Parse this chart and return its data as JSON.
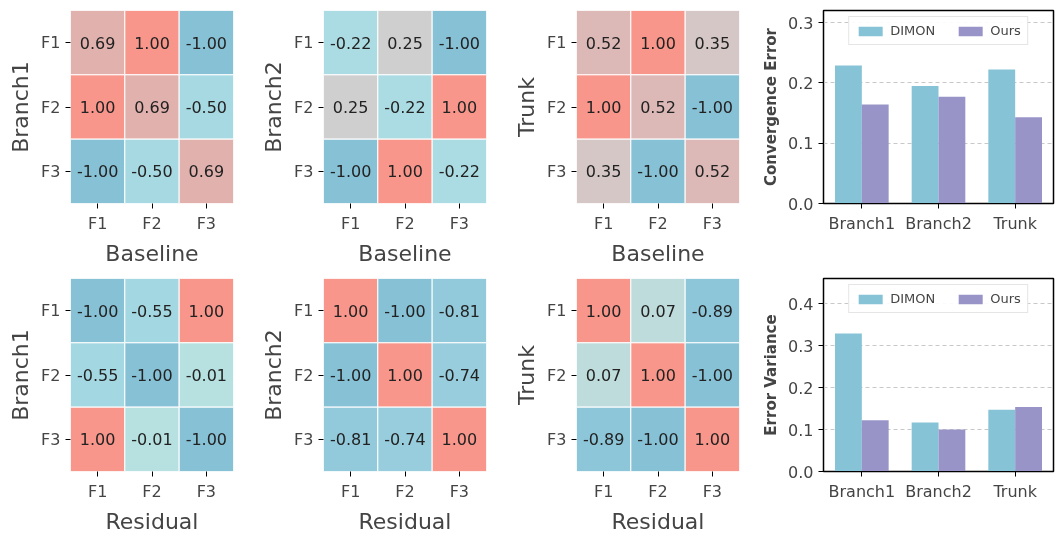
{
  "chart_data": [
    {
      "type": "heatmap",
      "xlabel": "Baseline",
      "ylabel": "Branch1",
      "categories": [
        "F1",
        "F2",
        "F3"
      ],
      "y_categories": [
        "F1",
        "F2",
        "F3"
      ],
      "cells": [
        [
          0.69,
          1.0,
          -1.0
        ],
        [
          1.0,
          0.69,
          -0.5
        ],
        [
          -1.0,
          -0.5,
          0.69
        ]
      ],
      "cell_labels": [
        [
          "0.69",
          "1.00",
          "-1.00"
        ],
        [
          "1.00",
          "0.69",
          "-0.50"
        ],
        [
          "-1.00",
          "-0.50",
          "0.69"
        ]
      ]
    },
    {
      "type": "heatmap",
      "xlabel": "Baseline",
      "ylabel": "Branch2",
      "categories": [
        "F1",
        "F2",
        "F3"
      ],
      "y_categories": [
        "F1",
        "F2",
        "F3"
      ],
      "cells": [
        [
          -0.22,
          0.25,
          -1.0
        ],
        [
          0.25,
          -0.22,
          1.0
        ],
        [
          -1.0,
          1.0,
          -0.22
        ]
      ],
      "cell_labels": [
        [
          "-0.22",
          "0.25",
          "-1.00"
        ],
        [
          "0.25",
          "-0.22",
          "1.00"
        ],
        [
          "-1.00",
          "1.00",
          "-0.22"
        ]
      ]
    },
    {
      "type": "heatmap",
      "xlabel": "Baseline",
      "ylabel": "Trunk",
      "categories": [
        "F1",
        "F2",
        "F3"
      ],
      "y_categories": [
        "F1",
        "F2",
        "F3"
      ],
      "cells": [
        [
          0.52,
          1.0,
          0.35
        ],
        [
          1.0,
          0.52,
          -1.0
        ],
        [
          0.35,
          -1.0,
          0.52
        ]
      ],
      "cell_labels": [
        [
          "0.52",
          "1.00",
          "0.35"
        ],
        [
          "1.00",
          "0.52",
          "-1.00"
        ],
        [
          "0.35",
          "-1.00",
          "0.52"
        ]
      ]
    },
    {
      "type": "bar",
      "ylabel": "Convergence Error",
      "categories": [
        "Branch1",
        "Branch2",
        "Trunk"
      ],
      "series": [
        {
          "name": "DIMON",
          "color": "#86c3d7",
          "values": [
            0.229,
            0.195,
            0.222
          ]
        },
        {
          "name": "Ours",
          "color": "#9994c8",
          "values": [
            0.164,
            0.177,
            0.143
          ]
        }
      ],
      "ylim": [
        0,
        0.32
      ],
      "yticks": [
        {
          "value": 0,
          "label": "0.0"
        },
        0.1,
        0.2,
        0.3
      ],
      "grid": "y",
      "legend": "top"
    },
    {
      "type": "heatmap",
      "xlabel": "Residual",
      "ylabel": "Branch1",
      "categories": [
        "F1",
        "F2",
        "F3"
      ],
      "y_categories": [
        "F1",
        "F2",
        "F3"
      ],
      "cells": [
        [
          -1.0,
          -0.55,
          1.0
        ],
        [
          -0.55,
          -1.0,
          -0.01
        ],
        [
          1.0,
          -0.01,
          -1.0
        ]
      ],
      "cell_labels": [
        [
          "-1.00",
          "-0.55",
          "1.00"
        ],
        [
          "-0.55",
          "-1.00",
          "-0.01"
        ],
        [
          "1.00",
          "-0.01",
          "-1.00"
        ]
      ]
    },
    {
      "type": "heatmap",
      "xlabel": "Residual",
      "ylabel": "Branch2",
      "categories": [
        "F1",
        "F2",
        "F3"
      ],
      "y_categories": [
        "F1",
        "F2",
        "F3"
      ],
      "cells": [
        [
          1.0,
          -1.0,
          -0.81
        ],
        [
          -1.0,
          1.0,
          -0.74
        ],
        [
          -0.81,
          -0.74,
          1.0
        ]
      ],
      "cell_labels": [
        [
          "1.00",
          "-1.00",
          "-0.81"
        ],
        [
          "-1.00",
          "1.00",
          "-0.74"
        ],
        [
          "-0.81",
          "-0.74",
          "1.00"
        ]
      ]
    },
    {
      "type": "heatmap",
      "xlabel": "Residual",
      "ylabel": "Trunk",
      "categories": [
        "F1",
        "F2",
        "F3"
      ],
      "y_categories": [
        "F1",
        "F2",
        "F3"
      ],
      "cells": [
        [
          1.0,
          0.07,
          -0.89
        ],
        [
          0.07,
          1.0,
          -1.0
        ],
        [
          -0.89,
          -1.0,
          1.0
        ]
      ],
      "cell_labels": [
        [
          "1.00",
          "0.07",
          "-0.89"
        ],
        [
          "0.07",
          "1.00",
          "-1.00"
        ],
        [
          "-0.89",
          "-1.00",
          "1.00"
        ]
      ]
    },
    {
      "type": "bar",
      "ylabel": "Error Variance",
      "categories": [
        "Branch1",
        "Branch2",
        "Trunk"
      ],
      "series": [
        {
          "name": "DIMON",
          "color": "#86c3d7",
          "values": [
            0.329,
            0.117,
            0.147
          ]
        },
        {
          "name": "Ours",
          "color": "#9994c8",
          "values": [
            0.122,
            0.1,
            0.154
          ]
        }
      ],
      "ylim": [
        0,
        0.46
      ],
      "yticks": [
        {
          "value": 0,
          "label": "0.0"
        },
        0.1,
        0.2,
        0.3,
        0.4
      ],
      "grid": "y",
      "legend": "top"
    }
  ]
}
